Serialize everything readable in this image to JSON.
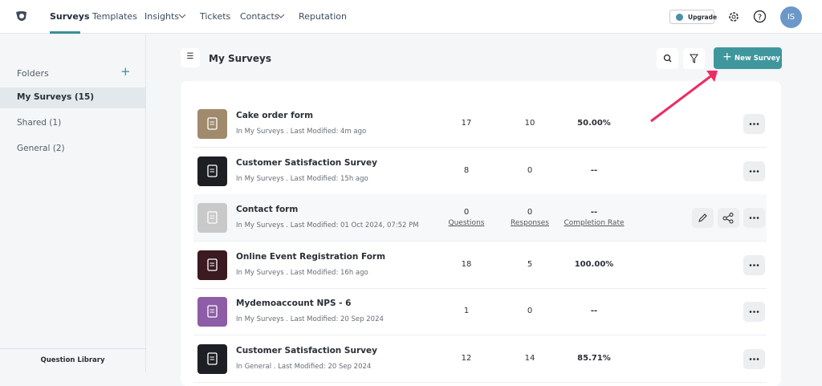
{
  "nav": {
    "items": [
      "Surveys",
      "Templates",
      "Insights",
      "Tickets",
      "Contacts",
      "Reputation"
    ],
    "upgrade": "Upgrade",
    "avatar": "IS"
  },
  "sidebar": {
    "title": "Folders",
    "folders": [
      "My Surveys (15)",
      "Shared (1)",
      "General (2)"
    ],
    "footer": "Question Library"
  },
  "main": {
    "title": "My Surveys",
    "new_button": "New Survey",
    "column_labels": {
      "questions": "Questions",
      "responses": "Responses",
      "completion": "Completion Rate"
    },
    "rows": [
      {
        "name": "Cake order form",
        "meta": "In My Surveys . Last Modified: 4m ago",
        "questions": "17",
        "responses": "10",
        "completion": "50.00%"
      },
      {
        "name": "Customer Satisfaction Survey",
        "meta": "In My Surveys . Last Modified: 15h ago",
        "questions": "8",
        "responses": "0",
        "completion": "--"
      },
      {
        "name": "Contact form",
        "meta": "In My Surveys . Last Modified: 01 Oct 2024, 07:52 PM",
        "questions": "0",
        "responses": "0",
        "completion": "--"
      },
      {
        "name": "Online Event Registration Form",
        "meta": "In My Surveys . Last Modified: 16h ago",
        "questions": "18",
        "responses": "5",
        "completion": "100.00%"
      },
      {
        "name": "Mydemoaccount NPS - 6",
        "meta": "In My Surveys . Last Modified: 20 Sep 2024",
        "questions": "1",
        "responses": "0",
        "completion": "--"
      },
      {
        "name": "Customer Satisfaction Survey",
        "meta": "In General . Last Modified: 20 Sep 2024",
        "questions": "12",
        "responses": "14",
        "completion": "85.71%"
      }
    ]
  }
}
